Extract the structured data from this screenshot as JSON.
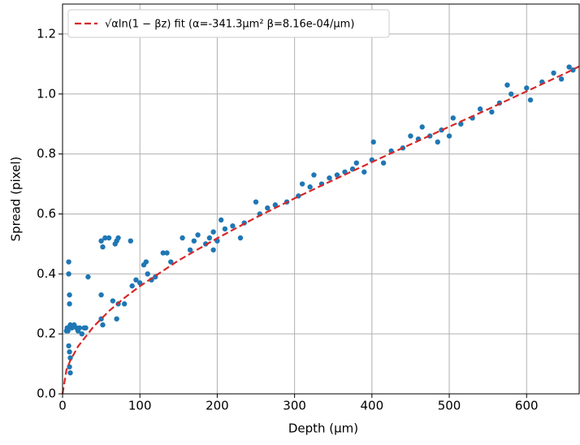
{
  "chart_data": {
    "type": "scatter",
    "x_label": "Depth (μm)",
    "y_label": "Spread (pixel)",
    "xlim": [
      0,
      668
    ],
    "ylim": [
      0,
      1.3
    ],
    "xticks": [
      0,
      100,
      200,
      300,
      400,
      500,
      600
    ],
    "yticks": [
      {
        "value": 0,
        "label": "0.0"
      },
      0.2,
      0.4,
      0.6,
      0.8,
      {
        "value": 1,
        "label": "1.0"
      },
      1.2
    ],
    "grid": true,
    "legend": "upper left",
    "scatter": {
      "color": "#1f77b4",
      "x": [
        5,
        6,
        7,
        8,
        8,
        9,
        9,
        8,
        9,
        10,
        9,
        10,
        10,
        12,
        15,
        18,
        20,
        22,
        25,
        28,
        30,
        33,
        50,
        52,
        55,
        60,
        70,
        72,
        68,
        88,
        50,
        52,
        50,
        65,
        70,
        72,
        80,
        90,
        95,
        100,
        105,
        108,
        110,
        115,
        120,
        130,
        135,
        140,
        155,
        165,
        170,
        175,
        185,
        190,
        195,
        195,
        200,
        205,
        210,
        220,
        230,
        235,
        250,
        255,
        265,
        275,
        290,
        305,
        310,
        320,
        325,
        335,
        345,
        355,
        365,
        375,
        380,
        390,
        400,
        402,
        415,
        425,
        440,
        450,
        460,
        465,
        475,
        485,
        490,
        500,
        505,
        515,
        530,
        540,
        555,
        565,
        575,
        580,
        600,
        605,
        620,
        635,
        645,
        655,
        660
      ],
      "values": [
        0.21,
        0.22,
        0.21,
        0.44,
        0.4,
        0.33,
        0.3,
        0.16,
        0.14,
        0.12,
        0.09,
        0.07,
        0.23,
        0.22,
        0.23,
        0.22,
        0.21,
        0.22,
        0.2,
        0.22,
        0.22,
        0.39,
        0.51,
        0.49,
        0.52,
        0.52,
        0.51,
        0.52,
        0.5,
        0.51,
        0.33,
        0.23,
        0.25,
        0.31,
        0.25,
        0.3,
        0.3,
        0.36,
        0.38,
        0.37,
        0.43,
        0.44,
        0.4,
        0.38,
        0.39,
        0.47,
        0.47,
        0.44,
        0.52,
        0.48,
        0.51,
        0.53,
        0.5,
        0.52,
        0.54,
        0.48,
        0.51,
        0.58,
        0.55,
        0.56,
        0.52,
        0.57,
        0.64,
        0.6,
        0.62,
        0.63,
        0.64,
        0.66,
        0.7,
        0.69,
        0.73,
        0.7,
        0.72,
        0.73,
        0.74,
        0.75,
        0.77,
        0.74,
        0.78,
        0.84,
        0.77,
        0.81,
        0.82,
        0.86,
        0.85,
        0.89,
        0.86,
        0.84,
        0.88,
        0.86,
        0.92,
        0.9,
        0.92,
        0.95,
        0.94,
        0.97,
        1.03,
        1.0,
        1.02,
        0.98,
        1.04,
        1.07,
        1.05,
        1.09,
        1.08
      ]
    },
    "fit": {
      "name": "√αln(1 − βz) fit (α=-341.3μm² β=8.16e-04/μm)",
      "color": "#d62728",
      "x": [
        0,
        5,
        10,
        20,
        40,
        60,
        80,
        100,
        150,
        200,
        250,
        300,
        350,
        400,
        450,
        500,
        550,
        600,
        650,
        668
      ],
      "values": [
        0,
        0.079,
        0.111,
        0.158,
        0.224,
        0.276,
        0.32,
        0.359,
        0.445,
        0.519,
        0.588,
        0.652,
        0.713,
        0.773,
        0.832,
        0.891,
        0.949,
        1.009,
        1.069,
        1.092
      ]
    }
  }
}
